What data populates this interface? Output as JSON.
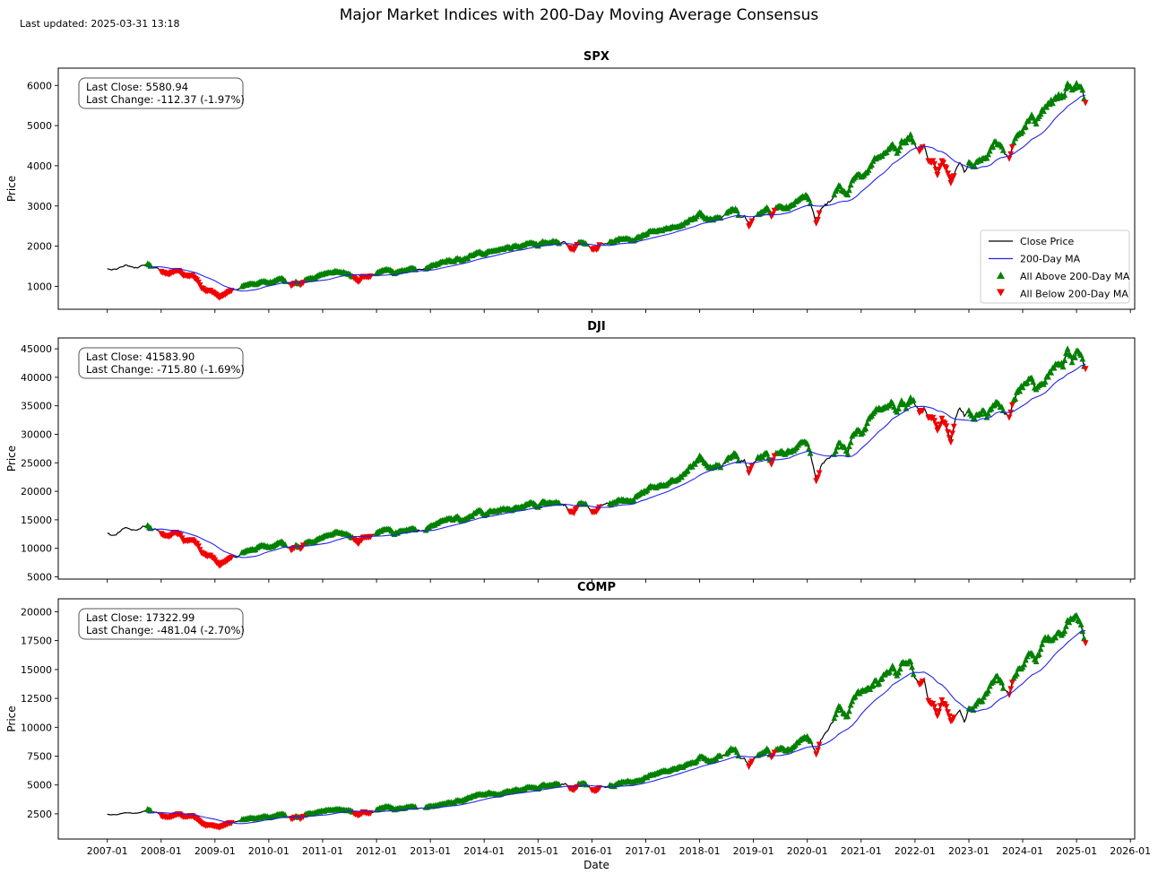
{
  "header": {
    "title": "Major Market Indices with 200-Day Moving Average Consensus",
    "last_updated": "Last updated: 2025-03-31 13:18"
  },
  "chart_data": {
    "type": "line",
    "frequency": "monthly",
    "x_start": "2007-01",
    "x_end": "2025-03",
    "xlabel": "Date",
    "ylabel": "Price",
    "xlim": [
      2006.09,
      2026.08
    ],
    "xticks": [
      "2007-01",
      "2008-01",
      "2009-01",
      "2010-01",
      "2011-01",
      "2012-01",
      "2013-01",
      "2014-01",
      "2015-01",
      "2016-01",
      "2017-01",
      "2018-01",
      "2019-01",
      "2020-01",
      "2021-01",
      "2022-01",
      "2023-01",
      "2024-01",
      "2025-01",
      "2026-01"
    ],
    "ma_window_months": 10,
    "grid": false,
    "legend": {
      "position": "lower right of first panel",
      "entries": [
        {
          "label": "Close Price",
          "type": "line",
          "color": "#000000"
        },
        {
          "label": "200-Day MA",
          "type": "line",
          "color": "#2525e8"
        },
        {
          "label": "All Above 200-Day MA",
          "type": "triangle-up",
          "color": "#008000"
        },
        {
          "label": "All Below 200-Day MA",
          "type": "triangle-down",
          "color": "#f00000"
        }
      ]
    },
    "colors": {
      "close": "#000000",
      "ma": "#2525e8",
      "above": "#008000",
      "below": "#f00000"
    },
    "panels": [
      {
        "symbol": "SPX",
        "title": "SPX",
        "annotation": [
          "Last Close: 5580.94",
          "Last Change: -112.37 (-1.97%)"
        ],
        "last_close": 5580.94,
        "last_change": -112.37,
        "last_change_pct": -1.97,
        "ylim": [
          430,
          6430
        ],
        "yticks": [
          1000,
          2000,
          3000,
          4000,
          5000,
          6000
        ],
        "close": [
          1438,
          1407,
          1421,
          1482,
          1531,
          1503,
          1455,
          1474,
          1527,
          1549,
          1481,
          1468,
          1379,
          1331,
          1323,
          1386,
          1400,
          1280,
          1267,
          1283,
          1166,
          969,
          896,
          903,
          826,
          735,
          798,
          873,
          919,
          919,
          987,
          1021,
          1057,
          1036,
          1096,
          1115,
          1074,
          1104,
          1169,
          1187,
          1089,
          1031,
          1102,
          1049,
          1141,
          1183,
          1181,
          1258,
          1286,
          1327,
          1326,
          1364,
          1345,
          1321,
          1292,
          1219,
          1131,
          1253,
          1247,
          1258,
          1312,
          1366,
          1408,
          1398,
          1310,
          1362,
          1379,
          1407,
          1441,
          1412,
          1416,
          1426,
          1498,
          1515,
          1569,
          1598,
          1631,
          1606,
          1686,
          1633,
          1682,
          1757,
          1806,
          1848,
          1783,
          1859,
          1872,
          1884,
          1924,
          1960,
          1931,
          2003,
          1972,
          2018,
          2068,
          2059,
          1995,
          2105,
          2068,
          2086,
          2107,
          2063,
          2104,
          1972,
          1920,
          2079,
          2080,
          2044,
          1940,
          1932,
          2060,
          2065,
          2097,
          2099,
          2174,
          2171,
          2168,
          2126,
          2199,
          2239,
          2279,
          2364,
          2363,
          2384,
          2412,
          2423,
          2470,
          2472,
          2519,
          2575,
          2648,
          2674,
          2824,
          2714,
          2641,
          2648,
          2705,
          2718,
          2816,
          2902,
          2914,
          2712,
          2760,
          2507,
          2704,
          2784,
          2834,
          2946,
          2752,
          2942,
          2980,
          2926,
          2977,
          3038,
          3141,
          3231,
          3226,
          2954,
          2585,
          2912,
          3044,
          3100,
          3271,
          3500,
          3363,
          3270,
          3622,
          3756,
          3714,
          3811,
          3973,
          4181,
          4204,
          4298,
          4395,
          4523,
          4308,
          4605,
          4567,
          4766,
          4516,
          4374,
          4530,
          4132,
          4132,
          3785,
          4130,
          3955,
          3586,
          3872,
          4080,
          3840,
          4077,
          3970,
          4109,
          4169,
          4180,
          4450,
          4589,
          4508,
          4288,
          4194,
          4568,
          4770,
          4846,
          5096,
          5254,
          5036,
          5278,
          5460,
          5522,
          5648,
          5762,
          5705,
          6032,
          5882,
          6041,
          5955,
          5580.94
        ]
      },
      {
        "symbol": "DJI",
        "title": "DJI",
        "annotation": [
          "Last Close: 41583.90",
          "Last Change: -715.80 (-1.69%)"
        ],
        "last_close": 41583.9,
        "last_change": -715.8,
        "last_change_pct": -1.69,
        "ylim": [
          4600,
          46900
        ],
        "yticks": [
          5000,
          10000,
          15000,
          20000,
          25000,
          30000,
          35000,
          40000,
          45000
        ],
        "close": [
          12622,
          12269,
          12354,
          13063,
          13628,
          13409,
          13212,
          13358,
          13896,
          13930,
          13372,
          13265,
          12650,
          12266,
          12263,
          12820,
          12638,
          11350,
          11378,
          11544,
          10851,
          9325,
          8829,
          8776,
          8001,
          7063,
          7609,
          8168,
          8500,
          8447,
          9172,
          9496,
          9712,
          9713,
          10345,
          10428,
          10067,
          10325,
          10857,
          11009,
          10137,
          9774,
          10466,
          10015,
          10788,
          11118,
          11006,
          11578,
          11892,
          12226,
          12320,
          12811,
          12570,
          12414,
          12143,
          11614,
          10913,
          11955,
          12046,
          12218,
          12633,
          12952,
          13212,
          13214,
          12393,
          12880,
          13009,
          13091,
          13437,
          13096,
          13026,
          13104,
          13861,
          14054,
          14579,
          14840,
          15116,
          14910,
          15500,
          14810,
          15130,
          15546,
          16086,
          16577,
          15699,
          16322,
          16458,
          16581,
          16717,
          16827,
          16563,
          17098,
          17043,
          17391,
          17828,
          17823,
          17165,
          18133,
          17776,
          17841,
          18011,
          17620,
          17690,
          16528,
          16285,
          17664,
          17720,
          17425,
          16466,
          16517,
          17685,
          17774,
          17787,
          17930,
          18432,
          18401,
          18308,
          18142,
          19124,
          19763,
          19864,
          20812,
          20663,
          20941,
          21009,
          21350,
          21891,
          21948,
          22405,
          23377,
          24272,
          24719,
          26149,
          25029,
          24103,
          24163,
          24416,
          24271,
          25415,
          25965,
          26458,
          25116,
          25538,
          23327,
          25000,
          25916,
          25929,
          26593,
          24815,
          26600,
          26864,
          26403,
          26917,
          27046,
          28051,
          28538,
          28256,
          25409,
          21917,
          24346,
          25383,
          25813,
          26428,
          28430,
          27782,
          26502,
          29639,
          30606,
          29983,
          30932,
          32981,
          33875,
          34529,
          34503,
          34935,
          35361,
          33844,
          35820,
          34484,
          36338,
          35132,
          33893,
          34678,
          32977,
          32990,
          30775,
          32845,
          31510,
          28726,
          32733,
          34590,
          33147,
          34086,
          32657,
          33274,
          34098,
          32908,
          34408,
          35560,
          34722,
          33508,
          33053,
          35951,
          37690,
          38150,
          38996,
          39807,
          37816,
          38686,
          39119,
          40843,
          41563,
          42330,
          41763,
          44911,
          42544,
          44545,
          43841,
          41583.9
        ]
      },
      {
        "symbol": "COMP",
        "title": "COMP",
        "annotation": [
          "Last Close: 17322.99",
          "Last Change: -481.04 (-2.70%)"
        ],
        "last_close": 17322.99,
        "last_change": -481.04,
        "last_change_pct": -2.7,
        "ylim": [
          320,
          21120
        ],
        "yticks": [
          2500,
          5000,
          7500,
          10000,
          12500,
          15000,
          17500,
          20000
        ],
        "close": [
          2464,
          2416,
          2422,
          2525,
          2605,
          2603,
          2546,
          2596,
          2702,
          2859,
          2661,
          2652,
          2390,
          2271,
          2279,
          2413,
          2523,
          2293,
          2326,
          2368,
          2092,
          1721,
          1536,
          1577,
          1476,
          1378,
          1529,
          1717,
          1774,
          1835,
          1979,
          2009,
          2122,
          2045,
          2145,
          2269,
          2147,
          2238,
          2398,
          2461,
          2257,
          2109,
          2255,
          2114,
          2369,
          2507,
          2498,
          2653,
          2700,
          2782,
          2781,
          2874,
          2835,
          2774,
          2756,
          2579,
          2415,
          2684,
          2620,
          2605,
          2814,
          2967,
          3092,
          3046,
          2827,
          2935,
          2940,
          3067,
          3116,
          2977,
          3010,
          3020,
          3142,
          3160,
          3268,
          3329,
          3456,
          3403,
          3626,
          3590,
          3771,
          3920,
          4060,
          4177,
          4104,
          4308,
          4199,
          4115,
          4243,
          4408,
          4370,
          4580,
          4493,
          4631,
          4792,
          4736,
          4635,
          4964,
          4901,
          4941,
          5070,
          4987,
          5128,
          4777,
          4620,
          5054,
          5109,
          5007,
          4614,
          4558,
          4870,
          4775,
          4948,
          4843,
          5162,
          5213,
          5312,
          5190,
          5324,
          5383,
          5615,
          5825,
          5912,
          6048,
          6199,
          6140,
          6348,
          6429,
          6496,
          6728,
          6874,
          6903,
          7411,
          7273,
          7063,
          7066,
          7442,
          7510,
          7672,
          8110,
          8046,
          7306,
          7331,
          6635,
          7282,
          7533,
          7729,
          8095,
          7453,
          8006,
          8175,
          7963,
          7999,
          8292,
          8665,
          8973,
          9151,
          8567,
          7700,
          8890,
          9490,
          10059,
          10745,
          11775,
          11168,
          10912,
          12199,
          12888,
          13071,
          13192,
          13247,
          13963,
          13749,
          14504,
          14673,
          15259,
          14449,
          15498,
          15538,
          15645,
          14240,
          13751,
          14221,
          12335,
          12081,
          11029,
          12391,
          11816,
          10576,
          10988,
          11468,
          10466,
          11585,
          11456,
          12222,
          12227,
          12935,
          13788,
          14346,
          14035,
          13219,
          12851,
          14226,
          15011,
          15164,
          16092,
          16379,
          15658,
          16735,
          17733,
          17599,
          17714,
          18189,
          18095,
          19218,
          19311,
          19627,
          18847,
          17322.99
        ]
      }
    ]
  }
}
